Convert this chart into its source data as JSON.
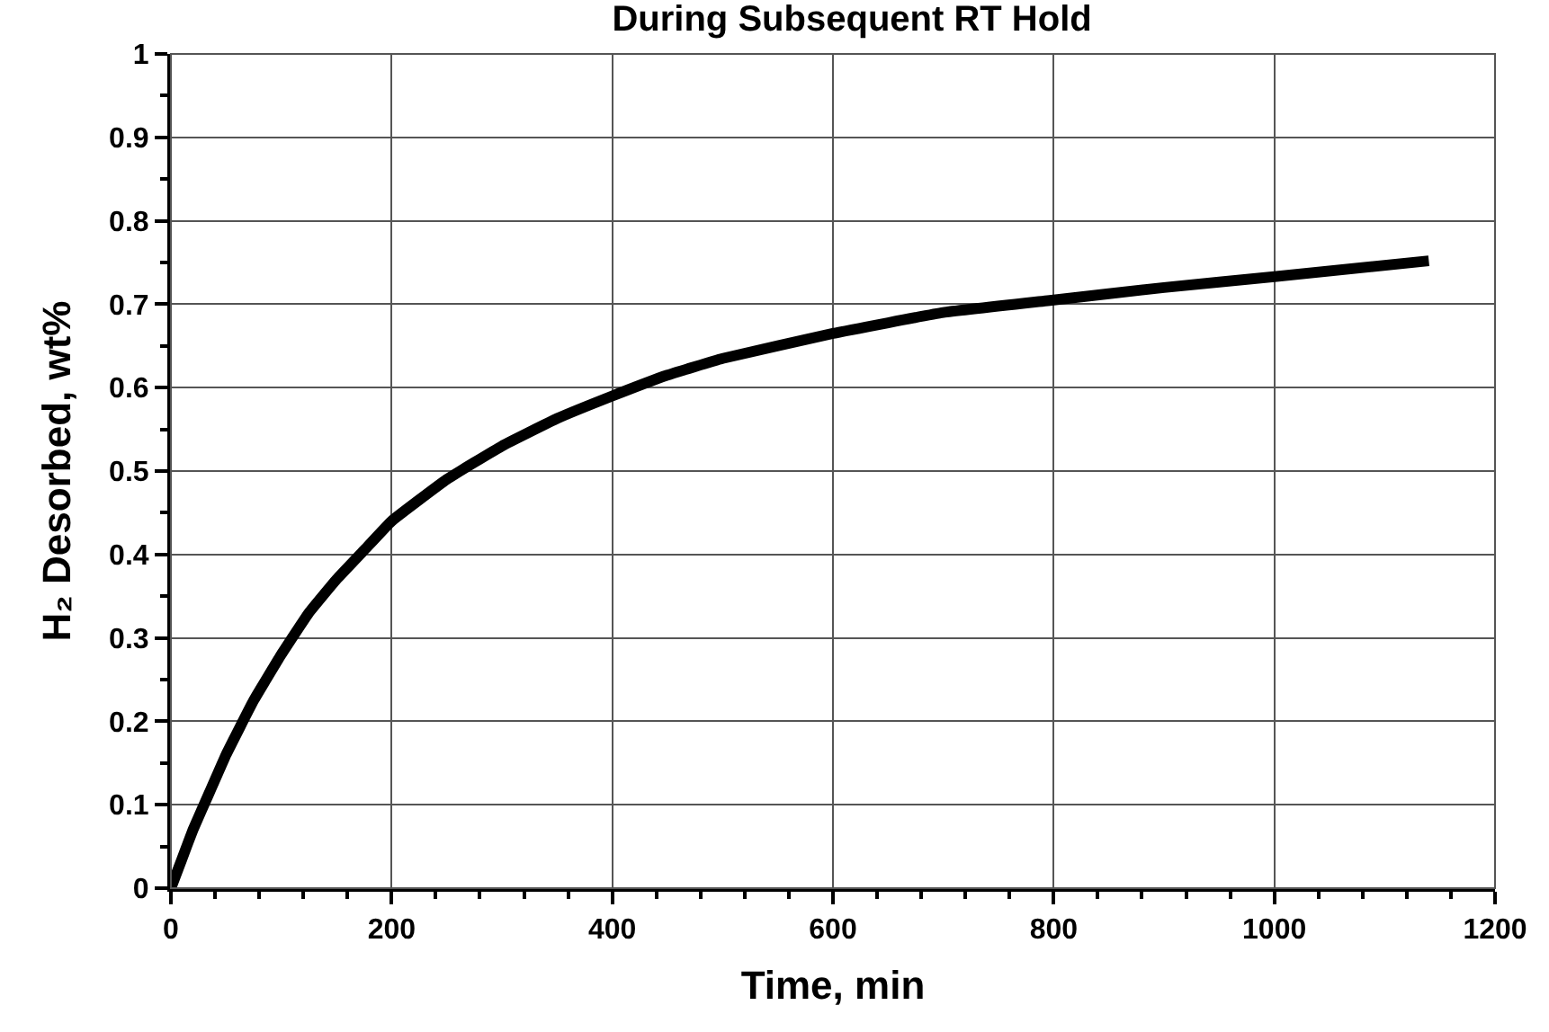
{
  "chart_data": {
    "type": "line",
    "title": "During Subsequent RT Hold",
    "xlabel": "Time, min",
    "ylabel": "H₂ Desorbed, wt%",
    "x": [
      0,
      10,
      20,
      35,
      50,
      75,
      100,
      125,
      150,
      175,
      200,
      250,
      300,
      350,
      400,
      450,
      500,
      600,
      700,
      800,
      900,
      1000,
      1140
    ],
    "series": [
      {
        "color": "#000000",
        "values": [
          0,
          0.035,
          0.07,
          0.115,
          0.16,
          0.225,
          0.28,
          0.33,
          0.37,
          0.405,
          0.44,
          0.49,
          0.53,
          0.563,
          0.59,
          0.615,
          0.635,
          0.665,
          0.69,
          0.705,
          0.72,
          0.733,
          0.752
        ]
      }
    ],
    "xlim": [
      0,
      1200
    ],
    "xticks": [
      0,
      200,
      400,
      600,
      800,
      1000,
      1200
    ],
    "ylim": [
      0,
      1
    ],
    "yticks": [
      0,
      0.1,
      0.2,
      0.3,
      0.4,
      0.5,
      0.6,
      0.7,
      0.8,
      0.9,
      1
    ],
    "grid": true,
    "marker": "none",
    "line_style": "solid"
  }
}
